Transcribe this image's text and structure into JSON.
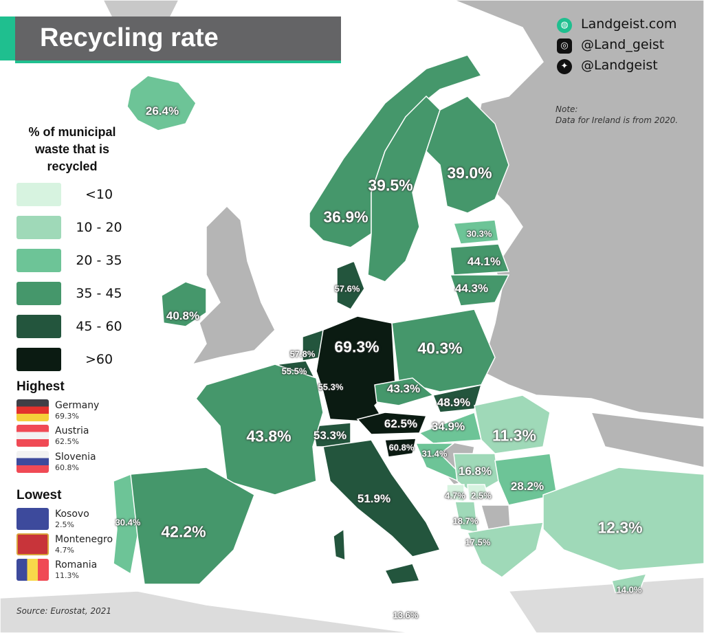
{
  "title": "Recycling rate",
  "brand": {
    "site": "Landgeist.com",
    "instagram": "@Land_geist",
    "twitter": "@Landgeist",
    "icons": [
      "globe-icon",
      "instagram-icon",
      "twitter-icon"
    ]
  },
  "note": {
    "label": "Note:",
    "text": "Data for Ireland is from 2020."
  },
  "legend": {
    "title_lines": [
      "% of municipal",
      "waste that is",
      "recycled"
    ],
    "bins": [
      {
        "label": "<10",
        "color": "#d7f3e0"
      },
      {
        "label": "10 - 20",
        "color": "#9fd9b8"
      },
      {
        "label": "20 - 35",
        "color": "#6dc497"
      },
      {
        "label": "35 - 45",
        "color": "#45976b"
      },
      {
        "label": "45 - 60",
        "color": "#23553d"
      },
      {
        "label": ">60",
        "color": "#0b1b12"
      }
    ],
    "no_data_color": "#b5b5b5"
  },
  "highest": {
    "title": "Highest",
    "items": [
      {
        "country": "Germany",
        "value": "69.3%"
      },
      {
        "country": "Austria",
        "value": "62.5%"
      },
      {
        "country": "Slovenia",
        "value": "60.8%"
      }
    ]
  },
  "lowest": {
    "title": "Lowest",
    "items": [
      {
        "country": "Kosovo",
        "value": "2.5%"
      },
      {
        "country": "Montenegro",
        "value": "4.7%"
      },
      {
        "country": "Romania",
        "value": "11.3%"
      }
    ]
  },
  "source": "Source: Eurostat, 2021",
  "countries": [
    {
      "name": "Iceland",
      "value": "26.4%"
    },
    {
      "name": "Norway",
      "value": "36.9%"
    },
    {
      "name": "Sweden",
      "value": "39.5%"
    },
    {
      "name": "Finland",
      "value": "39.0%"
    },
    {
      "name": "Estonia",
      "value": "30.3%"
    },
    {
      "name": "Latvia",
      "value": "44.1%"
    },
    {
      "name": "Lithuania",
      "value": "44.3%"
    },
    {
      "name": "Denmark",
      "value": "57.6%"
    },
    {
      "name": "Ireland",
      "value": "40.8%"
    },
    {
      "name": "Netherlands",
      "value": "57.8%"
    },
    {
      "name": "Belgium",
      "value": "55.5%"
    },
    {
      "name": "Luxembourg",
      "value": "55.3%"
    },
    {
      "name": "Germany",
      "value": "69.3%"
    },
    {
      "name": "Poland",
      "value": "40.3%"
    },
    {
      "name": "Czechia",
      "value": "43.3%"
    },
    {
      "name": "Slovakia",
      "value": "48.9%"
    },
    {
      "name": "Austria",
      "value": "62.5%"
    },
    {
      "name": "Hungary",
      "value": "34.9%"
    },
    {
      "name": "Slovenia",
      "value": "60.8%"
    },
    {
      "name": "Croatia",
      "value": "31.4%"
    },
    {
      "name": "Switzerland",
      "value": "53.3%"
    },
    {
      "name": "France",
      "value": "43.8%"
    },
    {
      "name": "Romania",
      "value": "11.3%"
    },
    {
      "name": "Serbia",
      "value": "16.8%"
    },
    {
      "name": "Bulgaria",
      "value": "28.2%"
    },
    {
      "name": "Montenegro",
      "value": "4.7%"
    },
    {
      "name": "Kosovo",
      "value": "2.5%"
    },
    {
      "name": "Albania",
      "value": "18.7%"
    },
    {
      "name": "Greece",
      "value": "17.5%"
    },
    {
      "name": "Turkey",
      "value": "12.3%"
    },
    {
      "name": "Italy",
      "value": "51.9%"
    },
    {
      "name": "Spain",
      "value": "42.2%"
    },
    {
      "name": "Portugal",
      "value": "30.4%"
    },
    {
      "name": "Cyprus",
      "value": "14.0%"
    },
    {
      "name": "Malta",
      "value": "13.6%"
    }
  ]
}
